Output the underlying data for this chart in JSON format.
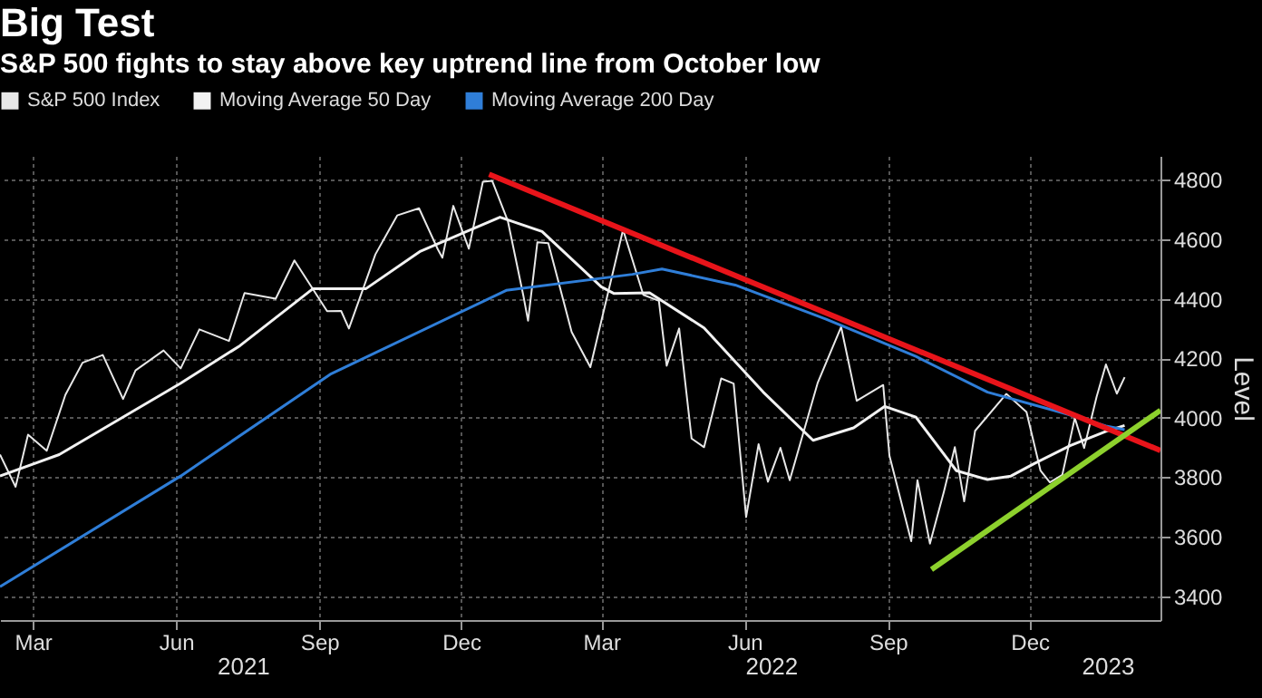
{
  "chart_data": {
    "type": "line",
    "title": "Big Test",
    "subtitle": "S&P 500 fights to stay above key uptrend line from October low",
    "ylabel": "Level",
    "xlim": [
      "2021-02-22",
      "2023-03-09"
    ],
    "ylim": [
      3320,
      4880
    ],
    "xticks": [
      {
        "value": "2021-03-15",
        "label": "Mar"
      },
      {
        "value": "2021-06-15",
        "label": "Jun"
      },
      {
        "value": "2021-09-15",
        "label": "Sep"
      },
      {
        "value": "2021-12-15",
        "label": "Dec"
      },
      {
        "value": "2022-03-15",
        "label": "Mar"
      },
      {
        "value": "2022-06-15",
        "label": "Jun"
      },
      {
        "value": "2022-09-15",
        "label": "Sep"
      },
      {
        "value": "2022-12-15",
        "label": "Dec"
      }
    ],
    "yticks": [
      3400,
      3600,
      3800,
      4000,
      4200,
      4400,
      4600,
      4800
    ],
    "grid": true,
    "legend": "top left",
    "marker": "none",
    "line_style": "solid",
    "annotations": [
      "2021",
      "2022",
      "2023"
    ],
    "series": [
      {
        "name": "S&P 500 Index",
        "color": "#e8e8e8",
        "x": [
          "2021-02-22",
          "2021-03-04",
          "2021-03-12",
          "2021-03-24",
          "2021-04-05",
          "2021-04-16",
          "2021-04-29",
          "2021-05-12",
          "2021-05-20",
          "2021-06-07",
          "2021-06-18",
          "2021-06-30",
          "2021-07-19",
          "2021-07-29",
          "2021-08-18",
          "2021-08-30",
          "2021-09-20",
          "2021-09-29",
          "2021-10-04",
          "2021-10-21",
          "2021-11-04",
          "2021-11-18",
          "2021-11-30",
          "2021-12-03",
          "2021-12-10",
          "2021-12-20",
          "2021-12-29",
          "2022-01-04",
          "2022-01-14",
          "2022-01-24",
          "2022-01-27",
          "2022-02-02",
          "2022-02-09",
          "2022-02-24",
          "2022-03-08",
          "2022-03-29",
          "2022-04-11",
          "2022-04-21",
          "2022-04-26",
          "2022-05-04",
          "2022-05-12",
          "2022-05-20",
          "2022-05-31",
          "2022-06-08",
          "2022-06-16",
          "2022-06-24",
          "2022-06-30",
          "2022-07-08",
          "2022-07-14",
          "2022-08-01",
          "2022-08-16",
          "2022-08-26",
          "2022-09-12",
          "2022-09-16",
          "2022-09-30",
          "2022-10-04",
          "2022-10-12",
          "2022-10-21",
          "2022-10-28",
          "2022-11-03",
          "2022-11-10",
          "2022-11-30",
          "2022-12-01",
          "2022-12-13",
          "2022-12-22",
          "2022-12-28",
          "2023-01-05",
          "2023-01-13",
          "2023-01-19",
          "2023-01-27",
          "2023-02-02",
          "2023-02-09",
          "2023-02-14"
        ],
        "values": [
          3876,
          3768,
          3943,
          3889,
          4077,
          4185,
          4211,
          4063,
          4159,
          4226,
          4166,
          4297,
          4258,
          4419,
          4400,
          4529,
          4358,
          4359,
          4300,
          4549,
          4680,
          4704,
          4567,
          4538,
          4712,
          4568,
          4793,
          4796,
          4662,
          4410,
          4326,
          4590,
          4587,
          4288,
          4170,
          4632,
          4413,
          4393,
          4175,
          4300,
          3930,
          3901,
          4132,
          4115,
          3666,
          3911,
          3785,
          3899,
          3790,
          4118,
          4305,
          4057,
          4110,
          3873,
          3585,
          3790,
          3577,
          3752,
          3901,
          3719,
          3956,
          4080,
          4076,
          4019,
          3822,
          3783,
          3808,
          3999,
          3898,
          4070,
          4179,
          4081,
          4136
        ]
      },
      {
        "name": "Moving Average 50 Day",
        "color": "#f2f2f2",
        "x": [
          "2021-02-22",
          "2021-04-01",
          "2021-06-18",
          "2021-07-26",
          "2021-09-11",
          "2021-10-15",
          "2021-11-19",
          "2022-01-09",
          "2022-02-05",
          "2022-03-15",
          "2022-03-23",
          "2022-04-15",
          "2022-05-20",
          "2022-06-27",
          "2022-07-29",
          "2022-08-24",
          "2022-09-13",
          "2022-10-03",
          "2022-10-29",
          "2022-11-18",
          "2022-12-03",
          "2022-12-18",
          "2023-01-10",
          "2023-02-02",
          "2023-02-14"
        ],
        "values": [
          3804,
          3876,
          4116,
          4242,
          4434,
          4434,
          4560,
          4674,
          4626,
          4440,
          4418,
          4420,
          4302,
          4086,
          3924,
          3966,
          4038,
          4002,
          3822,
          3792,
          3804,
          3846,
          3906,
          3954,
          3974
        ]
      },
      {
        "name": "Moving Average 200 Day",
        "color": "#2f7ed8",
        "x": [
          "2021-02-22",
          "2021-06-18",
          "2021-09-22",
          "2022-01-13",
          "2022-04-04",
          "2022-04-23",
          "2022-06-09",
          "2022-08-06",
          "2022-10-03",
          "2022-11-18",
          "2023-01-07",
          "2023-02-02",
          "2023-02-14"
        ],
        "values": [
          3432,
          3804,
          4146,
          4428,
          4482,
          4500,
          4446,
          4332,
          4206,
          4086,
          4014,
          3972,
          3960
        ]
      },
      {
        "color": "#e8141a",
        "x": [
          "2022-01-02",
          "2023-03-09"
        ],
        "values": [
          4818,
          3890
        ]
      },
      {
        "color": "#8dd12d",
        "x": [
          "2022-10-13",
          "2023-03-09"
        ],
        "values": [
          3490,
          4025
        ]
      }
    ]
  }
}
